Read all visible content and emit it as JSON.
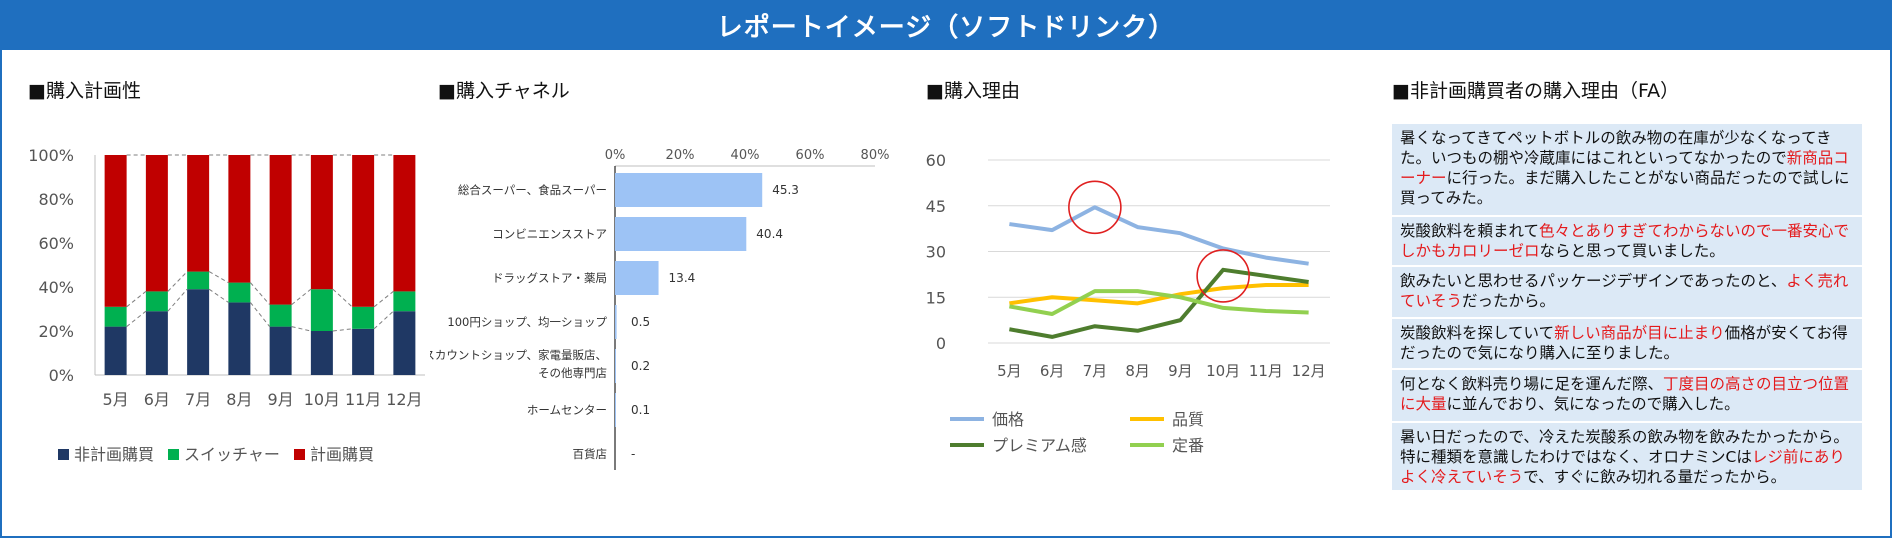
{
  "header": {
    "title": "レポートイメージ（ソフトドリンク）"
  },
  "colors": {
    "navy": "#1f3864",
    "green": "#00b050",
    "red": "#c00000",
    "lightblue": "#9dc3f5",
    "line_price": "#8db3e2",
    "line_quality": "#ffc000",
    "line_premium": "#4e7d2e",
    "line_staple": "#92d050",
    "circle": "#e02020",
    "grid": "#d9d9d9",
    "axis_text": "#555555"
  },
  "sections": {
    "planning": "■購入計画性",
    "channel": "■購入チャネル",
    "reason": "■購入理由",
    "fa": "■非計画購買者の購入理由（FA）"
  },
  "chart_data": [
    {
      "id": "planning",
      "type": "bar",
      "stacked": true,
      "title": "■購入計画性",
      "categories": [
        "5月",
        "6月",
        "7月",
        "8月",
        "9月",
        "10月",
        "11月",
        "12月"
      ],
      "series": [
        {
          "name": "非計画購買",
          "color": "#1f3864",
          "values": [
            22,
            29,
            39,
            33,
            22,
            20,
            21,
            29
          ]
        },
        {
          "name": "スイッチャー",
          "color": "#00b050",
          "values": [
            9,
            9,
            8,
            9,
            10,
            19,
            10,
            9
          ]
        },
        {
          "name": "計画購買",
          "color": "#c00000",
          "values": [
            69,
            62,
            53,
            58,
            68,
            61,
            69,
            62
          ]
        }
      ],
      "yticks": [
        "0%",
        "20%",
        "40%",
        "60%",
        "80%",
        "100%"
      ],
      "ylim": [
        0,
        100
      ],
      "legend_position": "bottom"
    },
    {
      "id": "channel",
      "type": "bar",
      "orientation": "horizontal",
      "title": "■購入チャネル",
      "categories": [
        "総合スーパー、食品スーパー",
        "コンビニエンスストア",
        "ドラッグストア・薬局",
        "100円ショップ、均一ショップ",
        "ディスカウントショップ、家電量販店、",
        "ホームセンター",
        "百貨店"
      ],
      "category_second_lines": [
        "",
        "",
        "",
        "",
        "その他専門店",
        "",
        ""
      ],
      "values": [
        45.3,
        40.4,
        13.4,
        0.5,
        0.2,
        0.1,
        0
      ],
      "value_labels": [
        "45.3",
        "40.4",
        "13.4",
        "0.5",
        "0.2",
        "0.1",
        "-"
      ],
      "xticks": [
        "0%",
        "20%",
        "40%",
        "60%",
        "80%"
      ],
      "xlim": [
        0,
        80
      ]
    },
    {
      "id": "reason",
      "type": "line",
      "title": "■購入理由",
      "x": [
        "5月",
        "6月",
        "7月",
        "8月",
        "9月",
        "10月",
        "11月",
        "12月"
      ],
      "series": [
        {
          "name": "価格",
          "color": "#8db3e2",
          "values": [
            39,
            37,
            44.5,
            38,
            36,
            31,
            28,
            26
          ]
        },
        {
          "name": "品質",
          "color": "#ffc000",
          "values": [
            13,
            15,
            14,
            13,
            16,
            18,
            19,
            19
          ]
        },
        {
          "name": "プレミアム感",
          "color": "#4e7d2e",
          "values": [
            4.5,
            2,
            5.5,
            4,
            7.5,
            24,
            22,
            20
          ]
        },
        {
          "name": "定番",
          "color": "#92d050",
          "values": [
            12,
            9.5,
            17,
            17,
            15,
            11.5,
            10.5,
            10
          ]
        }
      ],
      "yticks": [
        "0",
        "15",
        "30",
        "45",
        "60"
      ],
      "ylim": [
        0,
        60
      ],
      "annotations": [
        {
          "type": "circle",
          "x": "7月",
          "y": 44.5
        },
        {
          "type": "circle",
          "x": "10月",
          "y": 22
        }
      ],
      "legend_position": "bottom"
    }
  ],
  "fa_items": [
    [
      {
        "t": "暑くなってきてペットボトルの飲み物の在庫が少なくなってきた。いつもの棚や冷蔵庫にはこれといってなかったので"
      },
      {
        "t": "新商品コーナー",
        "red": true
      },
      {
        "t": "に行った。まだ購入したことがない商品だったので試しに買ってみた。"
      }
    ],
    [
      {
        "t": "炭酸飲料を頼まれて"
      },
      {
        "t": "色々とありすぎてわからないので一番安心でしかもカロリーゼロ",
        "red": true
      },
      {
        "t": "ならと思って買いました。"
      }
    ],
    [
      {
        "t": "飲みたいと思わせるパッケージデザインであったのと、"
      },
      {
        "t": "よく売れていそう",
        "red": true
      },
      {
        "t": "だったから。"
      }
    ],
    [
      {
        "t": "炭酸飲料を探していて"
      },
      {
        "t": "新しい商品が目に止まり",
        "red": true
      },
      {
        "t": "価格が安くてお得だったので気になり購入に至りました。"
      }
    ],
    [
      {
        "t": "何となく飲料売り場に足を運んだ際、"
      },
      {
        "t": "丁度目の高さの目立つ位置に大量",
        "red": true
      },
      {
        "t": "に並んでおり、気になったので購入した。"
      }
    ],
    [
      {
        "t": "暑い日だったので、冷えた炭酸系の飲み物を飲みたかったから。特に種類を意識したわけではなく、オロナミンCは"
      },
      {
        "t": "レジ前にありよく冷えていそう",
        "red": true
      },
      {
        "t": "で、すぐに飲み切れる量だったから。"
      }
    ]
  ]
}
